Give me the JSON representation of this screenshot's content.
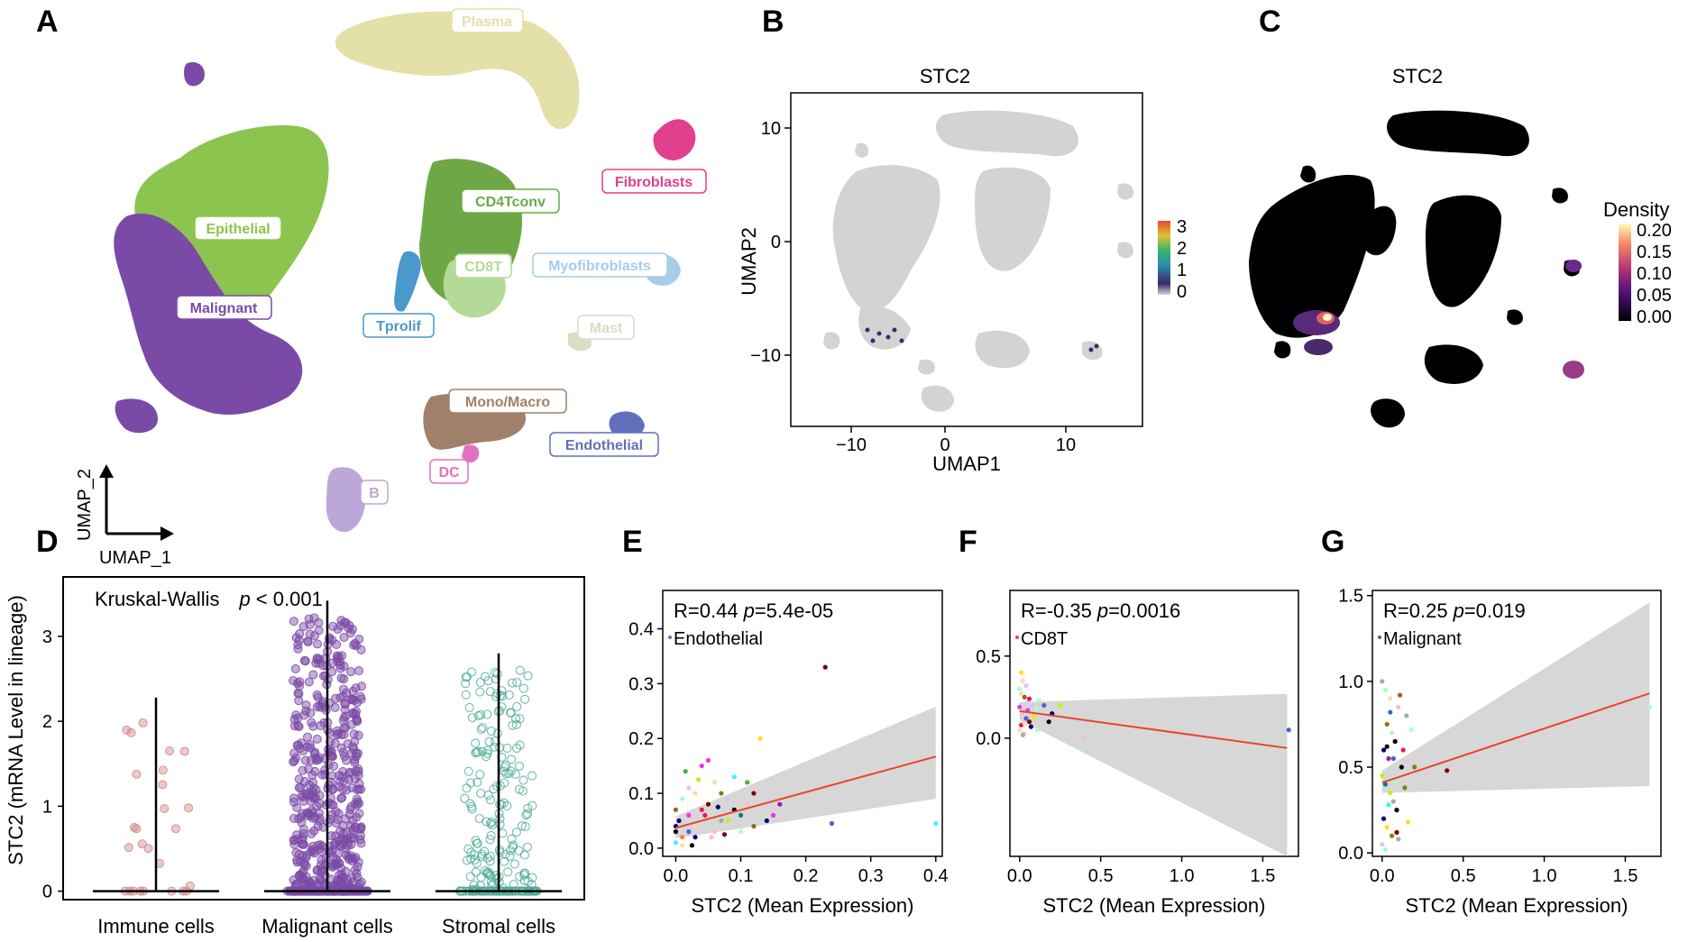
{
  "panels": {
    "A": {
      "letter": "A",
      "axis_x": "UMAP_1",
      "axis_y": "UMAP_2",
      "clusters": [
        {
          "label": "Plasma",
          "color": "#e3e1a8"
        },
        {
          "label": "Fibroblasts",
          "color": "#e0408c"
        },
        {
          "label": "Epithelial",
          "color": "#8cc450"
        },
        {
          "label": "CD4Tconv",
          "color": "#6ea846"
        },
        {
          "label": "CD8T",
          "color": "#b4da98"
        },
        {
          "label": "Myofibroblasts",
          "color": "#a8cce6"
        },
        {
          "label": "Malignant",
          "color": "#7a4aa6"
        },
        {
          "label": "Tprolif",
          "color": "#4a98cc"
        },
        {
          "label": "Mast",
          "color": "#dcdcc6"
        },
        {
          "label": "Mono/Macro",
          "color": "#a0806a"
        },
        {
          "label": "Endothelial",
          "color": "#6070bc"
        },
        {
          "label": "DC",
          "color": "#e070c0"
        },
        {
          "label": "B",
          "color": "#bca8d8"
        }
      ]
    },
    "B": {
      "letter": "B",
      "title": "STC2",
      "xlabel": "UMAP1",
      "ylabel": "UMAP2",
      "xticks": [
        "−10",
        "0",
        "10"
      ],
      "yticks": [
        "10",
        "0",
        "−10"
      ],
      "colorbar_ticks": [
        "3",
        "2",
        "1",
        "0"
      ]
    },
    "C": {
      "letter": "C",
      "title": "STC2",
      "colorbar_title": "Density",
      "colorbar_ticks": [
        "0.20",
        "0.15",
        "0.10",
        "0.05",
        "0.00"
      ]
    },
    "D": {
      "letter": "D"
    },
    "E": {
      "letter": "E"
    },
    "F": {
      "letter": "F"
    },
    "G": {
      "letter": "G"
    }
  },
  "chart_data": [
    {
      "panel": "D",
      "type": "violin-strip",
      "title": "",
      "annotation_prefix": "Kruskal-Wallis",
      "annotation_p": "p",
      "annotation_value": "< 0.001",
      "ylabel": "STC2 (mRNA Level in lineage)",
      "ylim": [
        -0.1,
        3.7
      ],
      "yticks": [
        "0",
        "1",
        "2",
        "3"
      ],
      "categories": [
        "Immune cells",
        "Malignant cells",
        "Stromal cells"
      ],
      "colors": [
        "#d08a8a",
        "#7a4aa6",
        "#4aaa98"
      ],
      "max_values": [
        2.28,
        3.42,
        2.8
      ],
      "point_counts": [
        26,
        720,
        260
      ]
    },
    {
      "panel": "E",
      "type": "scatter",
      "stat_R": "R=0.44",
      "stat_p_label": "p",
      "stat_p_value": "=5.4e-05",
      "group": "Endothelial",
      "xlabel": "STC2 (Mean Expression)",
      "xlim": [
        -0.02,
        0.41
      ],
      "ylim": [
        -0.015,
        0.47
      ],
      "xticks": [
        "0.0",
        "0.1",
        "0.2",
        "0.3",
        "0.4"
      ],
      "yticks": [
        "0.0",
        "0.1",
        "0.2",
        "0.3",
        "0.4"
      ],
      "fit": {
        "x": [
          0.0,
          0.4
        ],
        "y": [
          0.037,
          0.167
        ]
      },
      "ci_upper": [
        0.058,
        0.258
      ],
      "ci_lower": [
        0.018,
        0.09
      ],
      "points": [
        [
          0.23,
          0.33
        ],
        [
          0.13,
          0.2
        ],
        [
          0.4,
          0.045
        ],
        [
          0.24,
          0.045
        ],
        [
          0.16,
          0.08
        ],
        [
          0.0,
          0.04
        ],
        [
          0.01,
          0.02
        ],
        [
          0.02,
          0.06
        ],
        [
          0.03,
          0.1
        ],
        [
          0.04,
          0.15
        ],
        [
          0.05,
          0.08
        ],
        [
          0.06,
          0.12
        ],
        [
          0.07,
          0.05
        ],
        [
          0.08,
          0.09
        ],
        [
          0.09,
          0.13
        ],
        [
          0.1,
          0.06
        ],
        [
          0.11,
          0.08
        ],
        [
          0.12,
          0.04
        ],
        [
          0.0,
          0.01
        ],
        [
          0.01,
          0.005
        ],
        [
          0.02,
          0.03
        ],
        [
          0.03,
          0.02
        ],
        [
          0.04,
          0.07
        ],
        [
          0.05,
          0.16
        ],
        [
          0.06,
          0.03
        ],
        [
          0.02,
          0.11
        ],
        [
          0.0,
          0.07
        ],
        [
          0.01,
          0.09
        ],
        [
          0.07,
          0.1
        ],
        [
          0.08,
          0.05
        ],
        [
          0.03,
          0.04
        ],
        [
          0.045,
          0.06
        ],
        [
          0.015,
          0.14
        ],
        [
          0.055,
          0.02
        ],
        [
          0.09,
          0.07
        ],
        [
          0.11,
          0.12
        ],
        [
          0.14,
          0.05
        ],
        [
          0.12,
          0.1
        ],
        [
          0.025,
          0.005
        ],
        [
          0.035,
          0.125
        ],
        [
          0.065,
          0.075
        ],
        [
          0.005,
          0.05
        ],
        [
          0.075,
          0.025
        ],
        [
          0.1,
          0.03
        ],
        [
          0.15,
          0.06
        ],
        [
          0.0,
          0.03
        ]
      ]
    },
    {
      "panel": "F",
      "type": "scatter",
      "stat_R": "R=-0.35",
      "stat_p_label": "p",
      "stat_p_value": "=0.0016",
      "group": "CD8T",
      "xlabel": "STC2 (Mean Expression)",
      "xlim": [
        -0.06,
        1.72
      ],
      "ylim": [
        -0.72,
        0.9
      ],
      "xticks": [
        "0.0",
        "0.5",
        "1.0",
        "1.5"
      ],
      "yticks": [
        "0.0",
        "0.5"
      ],
      "fit": {
        "x": [
          0.0,
          1.65
        ],
        "y": [
          0.165,
          -0.06
        ]
      },
      "ci_upper": [
        0.22,
        0.27
      ],
      "ci_lower": [
        0.11,
        -0.72
      ],
      "points": [
        [
          1.66,
          0.05
        ],
        [
          0.01,
          0.4
        ],
        [
          0.02,
          0.35
        ],
        [
          0.0,
          0.3
        ],
        [
          0.03,
          0.25
        ],
        [
          0.05,
          0.22
        ],
        [
          0.08,
          0.2
        ],
        [
          0.1,
          0.18
        ],
        [
          0.02,
          0.15
        ],
        [
          0.04,
          0.12
        ],
        [
          0.06,
          0.1
        ],
        [
          0.01,
          0.08
        ],
        [
          0.0,
          0.05
        ],
        [
          0.03,
          0.03
        ],
        [
          0.12,
          0.23
        ],
        [
          0.15,
          0.2
        ],
        [
          0.2,
          0.15
        ],
        [
          0.18,
          0.1
        ],
        [
          0.05,
          0.17
        ],
        [
          0.07,
          0.07
        ],
        [
          0.09,
          0.13
        ],
        [
          0.02,
          0.02
        ],
        [
          0.0,
          0.19
        ],
        [
          0.25,
          0.2
        ],
        [
          0.4,
          0.01
        ],
        [
          0.01,
          0.27
        ],
        [
          0.04,
          0.32
        ],
        [
          0.06,
          0.24
        ],
        [
          0.11,
          0.05
        ],
        [
          0.03,
          0.09
        ]
      ]
    },
    {
      "panel": "G",
      "type": "scatter",
      "stat_R": "R=0.25",
      "stat_p_label": "p",
      "stat_p_value": "=0.019",
      "group": "Malignant",
      "xlabel": "STC2 (Mean Expression)",
      "xlim": [
        -0.06,
        1.72
      ],
      "ylim": [
        -0.02,
        1.53
      ],
      "xticks": [
        "0.0",
        "0.5",
        "1.0",
        "1.5"
      ],
      "yticks": [
        "0.0",
        "0.5",
        "1.0",
        "1.5"
      ],
      "fit": {
        "x": [
          0.0,
          1.65
        ],
        "y": [
          0.41,
          0.93
        ]
      },
      "ci_upper": [
        0.48,
        1.46
      ],
      "ci_lower": [
        0.35,
        0.39
      ],
      "points": [
        [
          1.65,
          0.85
        ],
        [
          0.4,
          0.48
        ],
        [
          0.0,
          1.0
        ],
        [
          0.02,
          0.95
        ],
        [
          0.05,
          0.9
        ],
        [
          0.1,
          0.85
        ],
        [
          0.15,
          0.8
        ],
        [
          0.03,
          0.75
        ],
        [
          0.06,
          0.7
        ],
        [
          0.08,
          0.65
        ],
        [
          0.01,
          0.6
        ],
        [
          0.04,
          0.55
        ],
        [
          0.12,
          0.5
        ],
        [
          0.0,
          0.45
        ],
        [
          0.02,
          0.4
        ],
        [
          0.05,
          0.35
        ],
        [
          0.07,
          0.3
        ],
        [
          0.09,
          0.25
        ],
        [
          0.01,
          0.2
        ],
        [
          0.03,
          0.15
        ],
        [
          0.06,
          0.1
        ],
        [
          0.0,
          0.05
        ],
        [
          0.02,
          0.02
        ],
        [
          0.11,
          0.92
        ],
        [
          0.13,
          0.6
        ],
        [
          0.18,
          0.72
        ],
        [
          0.2,
          0.5
        ],
        [
          0.08,
          0.42
        ],
        [
          0.04,
          0.28
        ],
        [
          0.14,
          0.38
        ],
        [
          0.16,
          0.18
        ],
        [
          0.1,
          0.08
        ],
        [
          0.03,
          0.62
        ],
        [
          0.05,
          0.82
        ],
        [
          0.07,
          0.55
        ],
        [
          0.09,
          0.12
        ]
      ]
    }
  ]
}
